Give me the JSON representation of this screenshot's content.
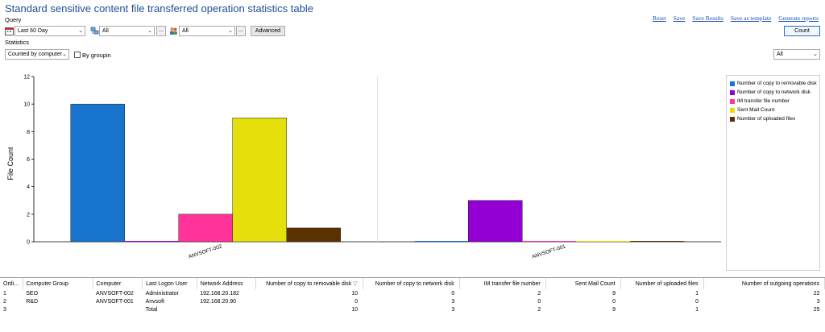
{
  "title": "Standard sensitive content file transferred operation statistics table",
  "links": [
    "Reset",
    "Save",
    "Save Results",
    "Save as template",
    "Generate reports"
  ],
  "query": {
    "label": "Query",
    "date_range": "Last 60 Day",
    "computer_scope": "All",
    "user_scope": "All",
    "advanced_button": "Advanced",
    "dots_label": "..."
  },
  "statistics": {
    "label": "Statistics",
    "count_by": "Counted by computer",
    "group_checkbox_label": "By groupin",
    "filter": "All"
  },
  "count_button": "Count",
  "chart_data": {
    "type": "bar",
    "categories": [
      "ANVSOFT-002",
      "ANVSOFT-001"
    ],
    "ylabel": "File Count",
    "ylim": [
      0,
      12
    ],
    "yticks": [
      "0",
      "2",
      "4",
      "6",
      "8",
      "10",
      "12"
    ],
    "grid": false,
    "legend_position": "right",
    "series": [
      {
        "name": "Number of copy to removable disk",
        "color": "#1874cd",
        "values": [
          10,
          0
        ]
      },
      {
        "name": "Number of copy to network disk",
        "color": "#9400d3",
        "values": [
          0,
          3
        ]
      },
      {
        "name": "IM transfer file number",
        "color": "#ff3399",
        "values": [
          2,
          0
        ]
      },
      {
        "name": "Sent Mail Count",
        "color": "#e5e00c",
        "values": [
          9,
          0
        ]
      },
      {
        "name": "Number of uploaded files",
        "color": "#5a3200",
        "values": [
          1,
          0
        ]
      }
    ]
  },
  "table": {
    "columns": [
      "Ordi...",
      "Computer Group",
      "Computer",
      "Last Logon User",
      "Network Address",
      "Number of copy to removable disk",
      "Number of copy to network disk",
      "IM transfer file number",
      "Sent Mail Count",
      "Number of uploaded files",
      "Number of outgoing operations"
    ],
    "sort_icon": "▽",
    "rows": [
      [
        "1",
        "SEO",
        "ANVSOFT-002",
        "Administrator",
        "192.168.20.182",
        "10",
        "0",
        "2",
        "9",
        "1",
        "22"
      ],
      [
        "2",
        "R&D",
        "ANVSOFT-001",
        "Anvsoft",
        "192.168.20.90",
        "0",
        "3",
        "0",
        "0",
        "0",
        "3"
      ],
      [
        "3",
        "",
        "",
        "Total",
        "",
        "10",
        "3",
        "2",
        "9",
        "1",
        "25"
      ]
    ]
  }
}
